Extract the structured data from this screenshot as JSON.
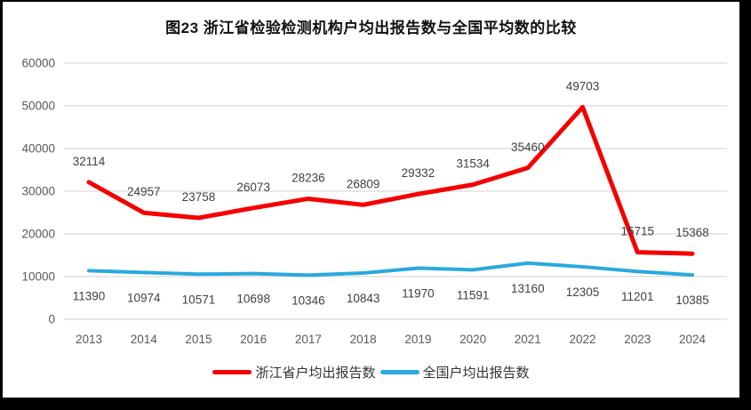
{
  "chart_data": {
    "type": "line",
    "title": "图23  浙江省检验检测机构户均出报告数与全国平均数的比较",
    "categories": [
      "2013",
      "2014",
      "2015",
      "2016",
      "2017",
      "2018",
      "2019",
      "2020",
      "2021",
      "2022",
      "2023",
      "2024"
    ],
    "series": [
      {
        "name": "浙江省户均出报告数",
        "color": "#f40000",
        "stroke_width": 5,
        "label_position": "above",
        "values": [
          32114,
          24957,
          23758,
          26073,
          28236,
          26809,
          29332,
          31534,
          35460,
          49703,
          15715,
          15368
        ]
      },
      {
        "name": "全国户均出报告数",
        "color": "#29a9dd",
        "stroke_width": 4,
        "label_position": "below",
        "values": [
          11390,
          10974,
          10571,
          10698,
          10346,
          10843,
          11970,
          11591,
          13160,
          12305,
          11201,
          10385
        ]
      }
    ],
    "y_axis": {
      "min": 0,
      "max": 60000,
      "step": 10000,
      "tick_labels": [
        "0",
        "10000",
        "20000",
        "30000",
        "40000",
        "50000",
        "60000"
      ]
    },
    "x_label": "",
    "y_label": "",
    "grid": true,
    "legend_position": "bottom",
    "colors": {
      "gridline": "#d9d9d9",
      "axis_text": "#595959",
      "data_label_text": "#404040",
      "chart_background": "#ffffff",
      "frame_background": "#000000"
    }
  }
}
